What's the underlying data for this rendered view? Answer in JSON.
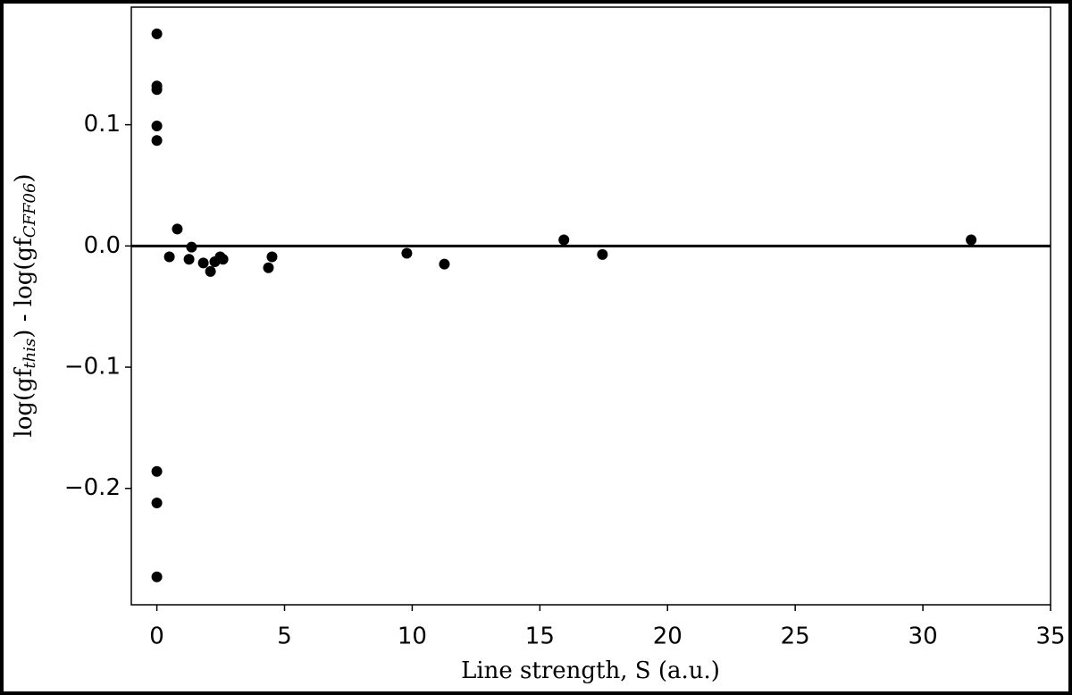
{
  "chart_data": {
    "type": "scatter",
    "x_label": "Line strength, S (a.u.)",
    "y_label_parts": [
      "log(gf",
      "this",
      ") - log(gf",
      "CFF06",
      ")"
    ],
    "x": [
      0,
      0,
      0,
      0,
      0,
      0,
      0,
      0,
      0.49,
      0.8,
      1.26,
      1.36,
      1.82,
      2.1,
      2.27,
      2.48,
      2.59,
      4.37,
      4.51,
      9.79,
      11.26,
      15.94,
      17.45,
      31.89
    ],
    "values": [
      0.175,
      0.132,
      0.129,
      0.099,
      0.087,
      -0.186,
      -0.212,
      -0.273,
      -0.009,
      0.014,
      -0.011,
      -0.001,
      -0.014,
      -0.021,
      -0.013,
      -0.009,
      -0.011,
      -0.018,
      -0.009,
      -0.006,
      -0.015,
      0.005,
      -0.007,
      0.005
    ],
    "color": "#000000",
    "hline": 0,
    "xlim": [
      -1,
      35
    ],
    "xticks": [
      0,
      5,
      10,
      15,
      20,
      25,
      30,
      35
    ],
    "ylim": [
      -0.296,
      0.197
    ],
    "yticks": [
      {
        "value": -0.2,
        "label": "−0.2"
      },
      {
        "value": -0.1,
        "label": "−0.1"
      },
      {
        "value": 0,
        "label": "0.0"
      },
      0.1
    ]
  }
}
